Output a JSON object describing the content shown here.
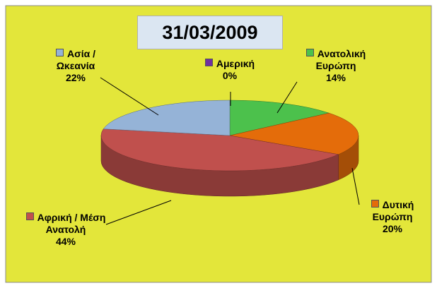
{
  "chart_data": {
    "type": "pie",
    "title": "31/03/2009",
    "categories": [
      "Αμερική",
      "Ανατολική Ευρώπη",
      "Δυτική Ευρώπη",
      "Αφρική / Μέση Ανατολή",
      "Ασία / Ωκεανία"
    ],
    "values": [
      0,
      14,
      20,
      44,
      22
    ],
    "value_labels": [
      "0%",
      "14%",
      "20%",
      "44%",
      "22%"
    ],
    "colors": [
      "#7030a0",
      "#4cc14c",
      "#e46c0a",
      "#c0504d",
      "#95b3d7"
    ]
  }
}
